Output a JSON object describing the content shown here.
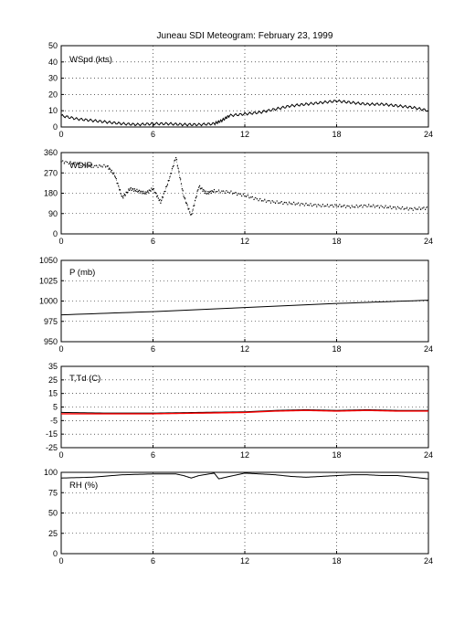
{
  "chart_data": [
    {
      "type": "scatter",
      "title": "Juneau SDI Meteogram:  February 23, 1999",
      "label": "WSpd (kts)",
      "xlim": [
        0,
        24
      ],
      "ylim": [
        0,
        50
      ],
      "xticks": [
        0,
        6,
        12,
        18,
        24
      ],
      "yticks": [
        0,
        10,
        20,
        30,
        40,
        50
      ],
      "grid": true,
      "series": [
        {
          "color": "#000000",
          "style": "line",
          "x": [
            0,
            1,
            2,
            3,
            4,
            5,
            6,
            7,
            8,
            9,
            10,
            10.5,
            11,
            12,
            13,
            14,
            15,
            16,
            17,
            18,
            19,
            20,
            21,
            22,
            23,
            24
          ],
          "y": [
            7,
            5,
            4,
            3,
            2,
            1.5,
            2,
            2,
            1.5,
            1.5,
            2,
            4,
            7,
            8,
            9,
            11,
            13,
            14,
            15,
            16,
            15,
            14,
            14,
            13,
            12,
            10
          ]
        }
      ]
    },
    {
      "type": "scatter",
      "title": "",
      "label": "WDIR",
      "xlim": [
        0,
        24
      ],
      "ylim": [
        0,
        360
      ],
      "xticks": [
        0,
        6,
        12,
        18,
        24
      ],
      "yticks": [
        0,
        90,
        180,
        270,
        360
      ],
      "grid": true,
      "series": [
        {
          "color": "#000000",
          "style": "dots",
          "x": [
            0,
            1,
            2,
            3,
            3.5,
            4,
            4.5,
            5,
            5.5,
            6,
            6.5,
            7,
            7.5,
            8,
            8.5,
            9,
            9.5,
            10,
            11,
            12,
            13,
            14,
            15,
            16,
            17,
            18,
            19,
            20,
            21,
            22,
            23,
            24
          ],
          "y": [
            320,
            310,
            300,
            300,
            260,
            160,
            200,
            190,
            180,
            200,
            140,
            230,
            340,
            170,
            80,
            210,
            180,
            190,
            185,
            170,
            150,
            140,
            135,
            130,
            125,
            125,
            120,
            125,
            120,
            115,
            110,
            115
          ]
        }
      ]
    },
    {
      "type": "line",
      "title": "",
      "label": "P (mb)",
      "xlim": [
        0,
        24
      ],
      "ylim": [
        950,
        1050
      ],
      "xticks": [
        0,
        6,
        12,
        18,
        24
      ],
      "yticks": [
        950,
        975,
        1000,
        1025,
        1050
      ],
      "grid": true,
      "series": [
        {
          "color": "#000000",
          "style": "line",
          "x": [
            0,
            6,
            12,
            18,
            24
          ],
          "y": [
            983,
            987,
            992,
            997,
            1001
          ]
        }
      ]
    },
    {
      "type": "line",
      "title": "",
      "label": "T,Td (C)",
      "xlim": [
        0,
        24
      ],
      "ylim": [
        -25,
        35
      ],
      "xticks": [
        0,
        6,
        12,
        18,
        24
      ],
      "yticks": [
        -25,
        -15,
        -5,
        5,
        15,
        25,
        35
      ],
      "grid": true,
      "series": [
        {
          "color": "#000000",
          "style": "line",
          "x": [
            0,
            3,
            6,
            9,
            12,
            14,
            16,
            18,
            20,
            22,
            24
          ],
          "y": [
            1,
            0.5,
            0.5,
            1,
            1.5,
            2.5,
            3,
            2.5,
            3,
            2.5,
            2.5
          ]
        },
        {
          "color": "#ff0000",
          "style": "line",
          "x": [
            0,
            3,
            6,
            9,
            12,
            14,
            16,
            18,
            20,
            22,
            24
          ],
          "y": [
            0,
            0,
            0,
            0.5,
            1,
            2,
            2.5,
            2,
            2.5,
            2,
            2
          ]
        }
      ]
    },
    {
      "type": "line",
      "title": "",
      "label": "RH (%)",
      "xlim": [
        0,
        24
      ],
      "ylim": [
        0,
        100
      ],
      "xticks": [
        0,
        6,
        12,
        18,
        24
      ],
      "yticks": [
        0,
        25,
        50,
        75,
        100
      ],
      "grid": true,
      "series": [
        {
          "color": "#000000",
          "style": "line",
          "x": [
            0,
            2,
            4,
            6,
            7.5,
            8,
            8.5,
            9,
            10,
            10.3,
            11,
            12,
            13,
            14,
            15,
            16,
            17,
            18,
            19,
            20,
            21,
            22,
            23,
            24
          ],
          "y": [
            93,
            94,
            97,
            98,
            98,
            96,
            93,
            96,
            99,
            92,
            95,
            99,
            98,
            97,
            95,
            94,
            95,
            96,
            97,
            97,
            96,
            96,
            94,
            92
          ]
        }
      ]
    }
  ]
}
